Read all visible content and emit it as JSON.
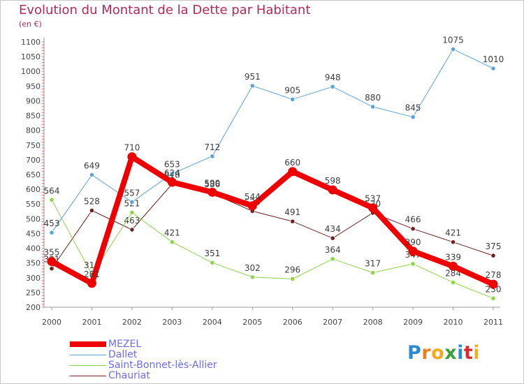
{
  "title": "Evolution du Montant de la Dette par Habitant",
  "unit_label": "(en €)",
  "logo_text": "Proxiti",
  "chart_data": {
    "type": "line",
    "title": "Evolution du Montant de la Dette par Habitant",
    "subtitle": "(en €)",
    "x": [
      "2000",
      "2001",
      "2002",
      "2003",
      "2004",
      "2005",
      "2006",
      "2007",
      "2008",
      "2009",
      "2010",
      "2011"
    ],
    "ylim": [
      200,
      1100
    ],
    "yticks": [
      200,
      250,
      300,
      350,
      400,
      450,
      500,
      550,
      600,
      650,
      700,
      750,
      800,
      850,
      900,
      950,
      1000,
      1050,
      1100
    ],
    "grid": false,
    "legend_position": "bottom-left",
    "series": [
      {
        "name": "Chauriat",
        "color": "#6e2222",
        "stroke": 1,
        "values": [
          331,
          528,
          463,
          618,
          586,
          526,
          491,
          434,
          520,
          466,
          421,
          375
        ],
        "labels": [
          "331",
          "528",
          "463",
          "618",
          "586",
          "526",
          "491",
          "434",
          "520",
          "466",
          "421",
          "375"
        ]
      },
      {
        "name": "Saint-Bonnet-lès-Allier",
        "color": "#8fd44a",
        "stroke": 1,
        "values": [
          564,
          311,
          521,
          421,
          351,
          302,
          296,
          364,
          317,
          347,
          284,
          230
        ],
        "labels": [
          "564",
          "311",
          "521",
          "421",
          "351",
          "302",
          "296",
          "364",
          "317",
          "347",
          "284",
          "230"
        ]
      },
      {
        "name": "Dallet",
        "color": "#5ea2d6",
        "stroke": 1,
        "values": [
          453,
          649,
          557,
          653,
          712,
          951,
          905,
          948,
          880,
          845,
          1075,
          1010
        ],
        "labels": [
          "453",
          "649",
          "557",
          "653",
          "712",
          "951",
          "905",
          "948",
          "880",
          "845",
          "1075",
          "1010"
        ]
      },
      {
        "name": "MEZEL",
        "color": "#ee0000",
        "stroke": 8,
        "values": [
          355,
          281,
          710,
          624,
          590,
          544,
          660,
          598,
          537,
          390,
          339,
          278
        ],
        "labels": [
          "355",
          "281",
          "710",
          "624",
          "590",
          "544",
          "660",
          "598",
          "537",
          "390",
          "339",
          "278"
        ]
      }
    ]
  },
  "legend": [
    {
      "name": "MEZEL",
      "color": "#ee0000",
      "stroke": 8
    },
    {
      "name": "Dallet",
      "color": "#5ea2d6",
      "stroke": 1
    },
    {
      "name": "Saint-Bonnet-lès-Allier",
      "color": "#8fd44a",
      "stroke": 1
    },
    {
      "name": "Chauriat",
      "color": "#6e2222",
      "stroke": 1
    }
  ]
}
